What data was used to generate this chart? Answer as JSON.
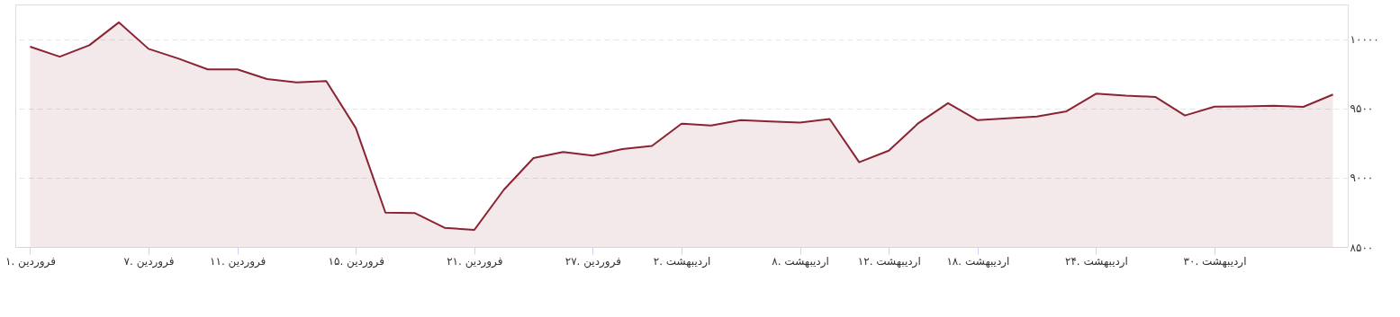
{
  "chart_data": {
    "type": "area",
    "categories": [
      "۱. فروردین",
      null,
      null,
      null,
      "۷. فروردین",
      null,
      null,
      "۱۱. فروردین",
      null,
      null,
      null,
      "۱۵. فروردین",
      null,
      null,
      null,
      "۲۱. فروردین",
      null,
      null,
      null,
      "۲۷. فروردین",
      null,
      null,
      "۲. اردیبهشت",
      null,
      null,
      null,
      "۸. اردیبهشت",
      null,
      null,
      "۱۲. اردیبهشت",
      null,
      null,
      "۱۸. اردیبهشت",
      null,
      null,
      null,
      "۲۴. اردیبهشت",
      null,
      null,
      null,
      "۳۰. اردیبهشت",
      null,
      null,
      null,
      null
    ],
    "series": [
      {
        "color": "#8b2332",
        "values": [
          9945,
          9873,
          9956,
          10121,
          9930,
          9860,
          9782,
          9782,
          9712,
          9687,
          9697,
          9358,
          8748,
          8744,
          8638,
          8623,
          8913,
          9142,
          9185,
          9159,
          9206,
          9229,
          9390,
          9377,
          9415,
          9405,
          9398,
          9424,
          9112,
          9195,
          9394,
          9538,
          9415,
          9428,
          9441,
          9479,
          9606,
          9592,
          9583,
          9449,
          9513,
          9515,
          9520,
          9511,
          9600
        ]
      }
    ],
    "ylim": [
      8500,
      10250
    ],
    "yticks": [
      {
        "value": 8500,
        "label": "۸۵۰۰"
      },
      {
        "value": 9000,
        "label": "۹۰۰۰"
      },
      {
        "value": 9500,
        "label": "۹۵۰۰"
      },
      {
        "value": 10000,
        "label": "۱۰۰۰۰"
      }
    ],
    "grid": "y",
    "line_style": "dashed"
  }
}
